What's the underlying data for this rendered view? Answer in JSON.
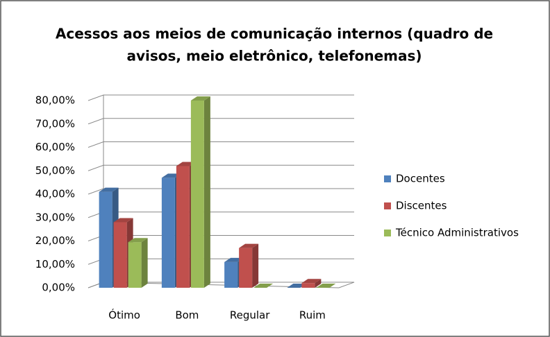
{
  "chart_data": {
    "type": "bar3d",
    "title": [
      "Acessos aos meios de comunicação internos (quadro de",
      "avisos, meio eletrônico, telefonemas)"
    ],
    "categories": [
      "Ótimo",
      "Bom",
      "Regular",
      "Ruim"
    ],
    "series": [
      {
        "name": "Docentes",
        "color": "#4f81bd",
        "values": [
          41,
          47,
          11,
          0
        ]
      },
      {
        "name": "Discentes",
        "color": "#c0504d",
        "values": [
          28,
          52,
          17,
          2
        ]
      },
      {
        "name": "Técnico Administrativos",
        "color": "#9bbb59",
        "values": [
          19.5,
          80,
          0,
          0
        ]
      }
    ],
    "ylim": [
      0,
      80
    ],
    "yticks": [
      {
        "value": 0,
        "label": "0,00%"
      },
      {
        "value": 10,
        "label": "10,00%"
      },
      {
        "value": 20,
        "label": "20,00%"
      },
      {
        "value": 30,
        "label": "30,00%"
      },
      {
        "value": 40,
        "label": "40,00%"
      },
      {
        "value": 50,
        "label": "50,00%"
      },
      {
        "value": 60,
        "label": "60,00%"
      },
      {
        "value": 70,
        "label": "70,00%"
      },
      {
        "value": 80,
        "label": "80,00%"
      }
    ],
    "grid": true
  }
}
